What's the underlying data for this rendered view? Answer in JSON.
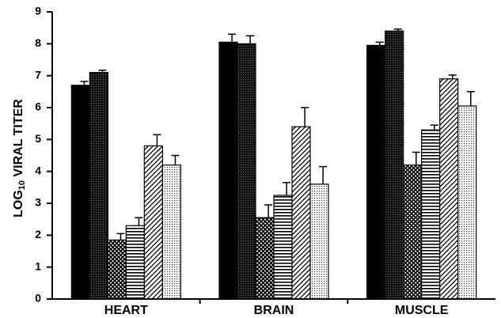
{
  "chart_data": {
    "type": "bar",
    "y_label": {
      "main": "LOG",
      "sub": "10",
      "rest": " VIRAL TITER"
    },
    "categories": [
      "HEART",
      "BRAIN",
      "MUSCLE"
    ],
    "series": [
      {
        "color": "#000000",
        "pattern": "solid",
        "values": [
          6.7,
          8.05,
          7.95
        ],
        "errors": [
          0.12,
          0.25,
          0.1
        ]
      },
      {
        "color": "#000000",
        "pattern": "dark-dots",
        "values": [
          7.1,
          8.0,
          8.4
        ],
        "errors": [
          0.07,
          0.25,
          0.06
        ]
      },
      {
        "color": "#000000",
        "pattern": "crosshatch",
        "values": [
          1.85,
          2.55,
          4.2
        ],
        "errors": [
          0.2,
          0.4,
          0.4
        ]
      },
      {
        "color": "#000000",
        "pattern": "horizontal",
        "values": [
          2.3,
          3.25,
          5.3
        ],
        "errors": [
          0.25,
          0.4,
          0.15
        ]
      },
      {
        "color": "#000000",
        "pattern": "diagonal",
        "values": [
          4.8,
          5.4,
          6.9
        ],
        "errors": [
          0.35,
          0.6,
          0.12
        ]
      },
      {
        "color": "#000000",
        "pattern": "dots",
        "values": [
          4.2,
          3.6,
          6.05
        ],
        "errors": [
          0.3,
          0.55,
          0.45
        ]
      }
    ],
    "ylim": [
      0,
      9
    ],
    "yticks": [
      0,
      1,
      2,
      3,
      4,
      5,
      6,
      7,
      8,
      9
    ]
  }
}
